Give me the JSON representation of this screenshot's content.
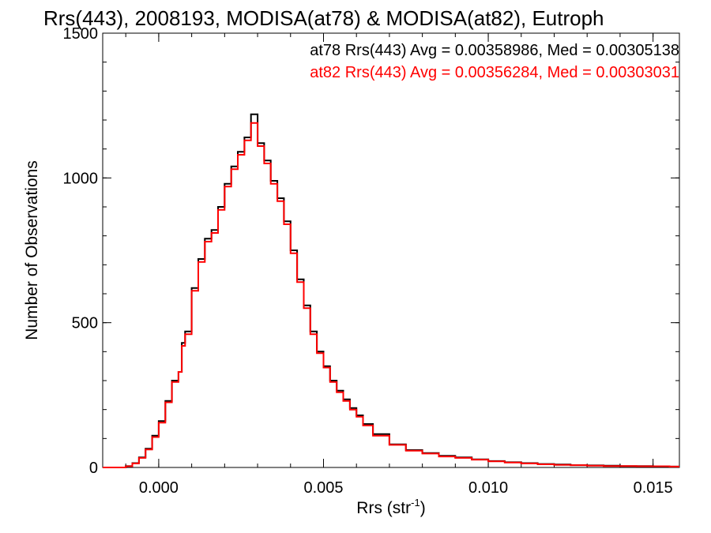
{
  "chart_data": {
    "type": "line",
    "title": "Rrs(443), 2008193, MODISA(at78) & MODISA(at82), Eutroph",
    "xlabel_base": "Rrs (str",
    "xlabel_sup": "-1",
    "xlabel_end": ")",
    "ylabel": "Number of Observations",
    "xlim": [
      -0.0017,
      0.0158
    ],
    "ylim": [
      0,
      1500
    ],
    "xticks": [
      0.0,
      0.005,
      0.01,
      0.015
    ],
    "xtick_labels": [
      "0.000",
      "0.005",
      "0.010",
      "0.015"
    ],
    "yticks": [
      0,
      500,
      1000,
      1500
    ],
    "ytick_labels": [
      "0",
      "500",
      "1000",
      "1500"
    ],
    "grid": false,
    "legend_position": "top-right",
    "series": [
      {
        "name": "at78 Rrs(443) Avg = 0.00358986, Med = 0.00305138",
        "color": "#000000",
        "x": [
          -0.0017,
          -0.0012,
          -0.001,
          -0.0008,
          -0.0006,
          -0.0004,
          -0.0002,
          0.0,
          0.0002,
          0.0004,
          0.0006,
          0.0007,
          0.0008,
          0.001,
          0.0012,
          0.0014,
          0.0016,
          0.0018,
          0.002,
          0.0022,
          0.0024,
          0.0026,
          0.0028,
          0.003,
          0.0032,
          0.0034,
          0.0036,
          0.0038,
          0.004,
          0.0042,
          0.0044,
          0.0046,
          0.0048,
          0.005,
          0.0052,
          0.0054,
          0.0056,
          0.0058,
          0.006,
          0.0062,
          0.0065,
          0.007,
          0.0075,
          0.008,
          0.0085,
          0.009,
          0.0095,
          0.01,
          0.0105,
          0.011,
          0.0115,
          0.012,
          0.0125,
          0.013,
          0.0135,
          0.014,
          0.0145,
          0.015,
          0.0155,
          0.0158
        ],
        "y": [
          0,
          0,
          5,
          15,
          35,
          65,
          110,
          160,
          230,
          300,
          330,
          430,
          470,
          620,
          720,
          790,
          820,
          900,
          980,
          1040,
          1090,
          1140,
          1220,
          1120,
          1060,
          990,
          930,
          850,
          750,
          650,
          560,
          470,
          400,
          350,
          300,
          265,
          235,
          205,
          180,
          150,
          115,
          80,
          60,
          50,
          40,
          35,
          28,
          22,
          18,
          15,
          12,
          10,
          8,
          7,
          6,
          5,
          5,
          4,
          3,
          3
        ]
      },
      {
        "name": "at82 Rrs(443) Avg = 0.00356284, Med = 0.00303031",
        "color": "#ff0000",
        "x": [
          -0.0017,
          -0.0012,
          -0.001,
          -0.0008,
          -0.0006,
          -0.0004,
          -0.0002,
          0.0,
          0.0002,
          0.0004,
          0.0006,
          0.0007,
          0.0008,
          0.001,
          0.0012,
          0.0014,
          0.0016,
          0.0018,
          0.002,
          0.0022,
          0.0024,
          0.0026,
          0.0028,
          0.003,
          0.0032,
          0.0034,
          0.0036,
          0.0038,
          0.004,
          0.0042,
          0.0044,
          0.0046,
          0.0048,
          0.005,
          0.0052,
          0.0054,
          0.0056,
          0.0058,
          0.006,
          0.0062,
          0.0065,
          0.007,
          0.0075,
          0.008,
          0.0085,
          0.009,
          0.0095,
          0.01,
          0.0105,
          0.011,
          0.0115,
          0.012,
          0.0125,
          0.013,
          0.0135,
          0.014,
          0.0145,
          0.015,
          0.0155,
          0.0158
        ],
        "y": [
          0,
          0,
          4,
          14,
          33,
          62,
          105,
          155,
          225,
          295,
          330,
          420,
          460,
          610,
          710,
          780,
          810,
          890,
          970,
          1030,
          1080,
          1130,
          1190,
          1110,
          1050,
          980,
          920,
          840,
          740,
          640,
          550,
          460,
          395,
          345,
          295,
          260,
          230,
          200,
          175,
          145,
          110,
          78,
          58,
          48,
          38,
          33,
          27,
          21,
          17,
          14,
          11,
          9,
          8,
          6,
          5,
          5,
          4,
          4,
          3,
          3
        ]
      }
    ]
  }
}
